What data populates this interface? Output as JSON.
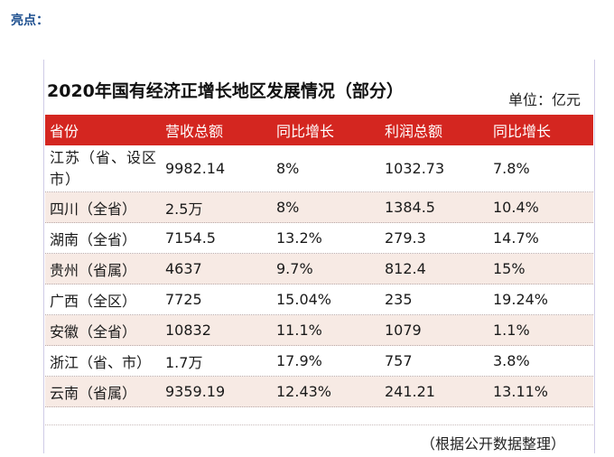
{
  "heading": "亮点：",
  "table": {
    "title": "2020年国有经济正增长地区发展情况（部分）",
    "unit": "单位：亿元",
    "columns": [
      "省份",
      "营收总额",
      "同比增长",
      "利润总额",
      "同比增长"
    ],
    "rows": [
      {
        "province": "江苏（省、设区市）",
        "revenue": "9982.14",
        "revenue_growth": "8%",
        "profit": "1032.73",
        "profit_growth": "7.8%"
      },
      {
        "province": "四川（全省）",
        "revenue": "2.5万",
        "revenue_growth": "8%",
        "profit": "1384.5",
        "profit_growth": "10.4%"
      },
      {
        "province": "湖南（全省）",
        "revenue": "7154.5",
        "revenue_growth": "13.2%",
        "profit": "279.3",
        "profit_growth": "14.7%"
      },
      {
        "province": "贵州（省属）",
        "revenue": "4637",
        "revenue_growth": "9.7%",
        "profit": "812.4",
        "profit_growth": "15%"
      },
      {
        "province": "广西（全区）",
        "revenue": "7725",
        "revenue_growth": "15.04%",
        "profit": "235",
        "profit_growth": "19.24%"
      },
      {
        "province": "安徽（全省）",
        "revenue": "10832",
        "revenue_growth": "11.1%",
        "profit": "1079",
        "profit_growth": "1.1%"
      },
      {
        "province": "浙江（省、市）",
        "revenue": "1.7万",
        "revenue_growth": "17.9%",
        "profit": "757",
        "profit_growth": "3.8%"
      },
      {
        "province": "云南（省属）",
        "revenue": "9359.19",
        "revenue_growth": "12.43%",
        "profit": "241.21",
        "profit_growth": "13.11%"
      }
    ],
    "source": "（根据公开数据整理）"
  },
  "colors": {
    "header_bg": "#d42620",
    "alt_row_bg": "#f7eae4",
    "heading": "#1d4f8f"
  }
}
